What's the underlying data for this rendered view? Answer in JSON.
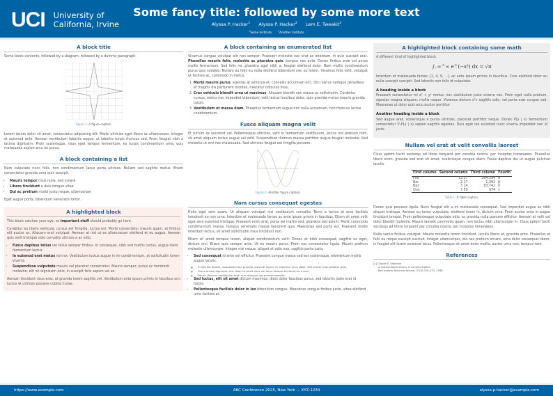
{
  "header": {
    "logo_mark": "UCI",
    "logo_line1": "University of",
    "logo_line2": "California, Irvine",
    "title": "Some fancy title: followed by some more text",
    "authors": [
      {
        "name": "Alyssa P. Hacker",
        "sup": "1"
      },
      {
        "name": "Alyssa P. Hacker",
        "sup": "2"
      },
      {
        "name": "Lem E. Tweakit",
        "sup": "2"
      }
    ],
    "institutes": [
      {
        "sup": "1",
        "name": "Some Institute"
      },
      {
        "sup": "2",
        "name": "Another Institute"
      }
    ]
  },
  "col1": {
    "block1": {
      "title": "A block title",
      "intro": "Some block contents, followed by a diagram, followed by a dummy paragraph.",
      "figure_label": "Figure 1:",
      "figure_caption": "A figure caption.",
      "para": "Lorem ipsum dolor sit amet, consectetur adipiscing elit. Morbi ultricies eget libero ac ullamcorper. Integer et euismod ante. Aenean vestibulum lobortis augue, ut lobortis turpis rhoncus sed. Proin feugiat nibh a lacinia dignissim. Proin scelerisque, risus eget tempor fermentum, ex turpis condimentum urna, quis malesuada sapien arcu eu purus."
    },
    "block2": {
      "title": "A block containing a list",
      "intro": "Nam vulputate nunc felis, non condimentum lacus porta ultrices. Nullam sed sagittis metus. Etiam consectetur gravida urna quis suscipit.",
      "items": [
        {
          "bold": "Mauris tempor",
          "text": " risus nulla, sed ornare"
        },
        {
          "bold": "Libero tincidunt",
          "text": " a duis congue vitae"
        },
        {
          "bold": "Dui ac pretium",
          "text": " morbi justo neque, ullamcorper"
        }
      ],
      "outro": "Eget augue porta, bibendum venenatis tortor."
    },
    "block3": {
      "title": "A highlighted block",
      "intro_pre": "This block catches your eye, so ",
      "intro_bold": "important stuff",
      "intro_post": " should probably go here.",
      "para": "Curabitur eu libero vehicula, cursus est fringilla, luctus est. Morbi consectetur mauris quam, at finibus elit auctor ac. Aliquam erat volutpat. Aenean at nisl ut ex ullamcorper eleifend et eu augue. Aenean quis velit tristique odio convallis ultrices a ac odio.",
      "items": [
        {
          "bold": "Fusce dapibus tellus",
          "text": " vel tellus semper finibus. In consequat, nibh sed mattis luctus, augue diam fermentum lectus."
        },
        {
          "bold": "In euismod erat metus",
          "text": " non ex. Vestibulum luctus augue in mi condimentum, at sollicitudin lorem viverra."
        },
        {
          "bold": "Suspendisse vulputate",
          "text": " mauris vel placerat consectetur. Mauris semper, purus ac hendrerit molestie, elit mi dignissim odio, in suscipit felis sapien vel ex."
        }
      ],
      "outro": "Aenean tincidunt risus eros, at gravida lorem sagittis vel. Vestibulum ante ipsum primis in faucibus orci luctus et ultrices posuere cubilia Curae."
    }
  },
  "col2": {
    "block1": {
      "title": "A block containing an enumerated list",
      "para_pre": "Vivamus congue volutpat elit non semper. Praesent molestie nec erat ac interdum. In quis suscipit erat. ",
      "para_bold": "Phasellus mauris felis, molestie ac pharetra quis",
      "para_post": ", tempus nec ante. Donec finibus ante vel purus mollis fermentum. Sed felis mi, pharetra eget nibh a, feugiat eleifend dolor. Nam mollis condimentum purus quis sodales. Nullam eu felis eu nulla eleifend bibendum nec eu lorem. Vivamus felis velit, volutpat ut facilisis ac, commodo in metus.",
      "items": [
        {
          "bold": "Morbi mauris purus",
          "text": ", egestas at vehicula et, convallis accumsan orci. Orci varius natoque penatibus et magnis dis parturient montes, nascetur ridiculus mus."
        },
        {
          "bold": "Cras vehicula blandit urna ut maximus",
          "text": ". Aliquam blandit nec massa ac sollicitudin. Curabitur cursus, metus nec imperdiet bibendum, velit lectus faucibus dolor, quis gravida metus mauris gravida turpis."
        },
        {
          "bold": "Vestibulum et massa diam",
          "text": ". Phasellus fermentum augue non nulla accumsan, non rhoncus lectus condimentum."
        }
      ]
    },
    "block2": {
      "title": "Fusce aliquam magna velit",
      "para": "Et rutrum ex euismod vel. Pellentesque ultricies, velit in fermentum vestibulum, lectus nisi pretium nibh, sit amet aliquam lectus augue vel velit. Suspendisse rhoncus massa porttitor augue feugiat molestie. Sed molestie ut orci nec malesuada. Sed ultricies feugiat est fringilla posuere.",
      "figure_label": "Figure 2:",
      "figure_caption": "Another figure caption."
    },
    "block3": {
      "title": "Nam cursus consequat egestas",
      "para1": "Nulla eget sem quam. Ut aliquam volutpat nisi vestibulum convallis. Nunc a lectus et eros facilisis hendrerit eu non urna. Interdum et malesuada fames ac ante ipsum primis in faucibus. Etiam sit amet velit eget sem euismod tristique. Praesent enim erat, porta vel mattis sed, pharetra sed ipsum. Morbi commodo condimentum massa, tempus venenatis massa hendrerit quis. Maecenas sed porta est. Praesent mollis interdum lectus, sit amet sollicitudin risus tincidunt non.",
      "para2": "Etiam sit amet tempus lorem, aliquet condimentum velit. Donec et nibh consequat, sagittis ex eget, dictum orci. Etiam quis semper ante. Ut eu mauris purus. Proin nec consectetur ligula. Mauris pretium molestie ullamcorper. Integer nisi neque, aliquet et odio non, sagittis porta justo.",
      "items": [
        {
          "bold": "Sed consequat",
          "text": " id ante vel efficitur. Praesent congue massa sed est scelerisque, elementum mollis augue iaculis.",
          "sub": [
            "In sed est finibus, vulputate nunc gravida, pulvinar lorem. In maximus nunc dolor, sed auctor eros porttitor quis.",
            "Fusce ornare dignissim nisi. Nam sit amet risus vel lacus tempor tincidunt eu a arcu.",
            "Donec rhoncus vestibulum erat, quis aliquam leo gravida egestas."
          ]
        },
        {
          "bold": "Sed luctus, elit sit amet",
          "text": " dictum maximus, diam dolor faucibus purus, sed lobortis justo erat id turpis."
        },
        {
          "bold": "Pellentesque facilisis dolor in leo",
          "text": " bibendum congue. Maecenas congue finibus justo, vitae eleifend urna facilisis at."
        }
      ]
    }
  },
  "col3": {
    "block1": {
      "title": "A highlighted block containing some math",
      "intro": "A different kind of highlighted block.",
      "equation": "∫₋∞^∞ e^(−x²) dx = √π",
      "para": "Interdum et malesuada fames {1, 4, 9, …} ac ante ipsum primis in faucibus. Cras eleifend dolor eu nulla suscipit suscipit. Sed lobortis non felis id vulputate.",
      "heading1": "A heading inside a block",
      "para1": "Praesent consectetur mi x² + y² metus, nec vestibulum justo viverra nec. Proin eget nulla pretium, egestas magna aliquam, mollis neque. Vivamus dictum uᵀv sagittis odio, vel porta erat congue sed. Maecenas ut dolor quis arcu auctor porttitor.",
      "heading2": "Another heading inside a block",
      "para2": "Sed augue erat, scelerisque a purus ultricies, placerat porttitor neque. Donec P(y | x) fermentum consectetur ∇ₓP(y | x) sapien sagittis egestas. Duis eget leo euismod nunc viverra imperdiet nec id justo."
    },
    "block2": {
      "title": "Nullam vel erat at velit convallis laoreet",
      "para": "Class aptent taciti sociosqu ad litora torquent per conubia nostra, per inceptos himenaeos. Phasellus libero enim, gravida sed erat sit amet, scelerisque congue diam. Fusce dapibus dui ut augue pulvinar iaculis.",
      "table": {
        "headers": [
          "First column",
          "Second column",
          "Third column",
          "Fourth"
        ],
        "rows": [
          [
            "Foo",
            "13.37",
            "384,394",
            "α"
          ],
          [
            "Bar",
            "2.17",
            "1,392",
            "β"
          ],
          [
            "Baz",
            "3.14",
            "83,742",
            "δ"
          ],
          [
            "Qux",
            "7.59",
            "974",
            "γ"
          ]
        ]
      },
      "table_label": "Table 1:",
      "table_caption": "A table caption.",
      "para2": "Donec quis posuere ligula. Nunc feugiat elit a mi malesuada consequat. Sed imperdiet augue ac nibh aliquet tristique. Aenean eu tortor vulputate, eleifend lorem in, dictum urna. Proin auctor ante in augue tincidunt tempor. Proin pellentesque vulputate odio, ac gravida nulla posuere efficitur. Aenean at velit vel dolor blandit molestie. Mauris laoreet commodo quam, non luctus nibh ullamcorper in. Class aptent taciti sociosqu ad litora torquent per conubia nostra, per inceptos himenaeos.",
      "para3": "Nulla varius finibus volutpat. Mauris molestie lorem tincidunt, iaculis libero at, gravida ante. Phasellus at felis eu neque suscipit suscipit. Integer ullamcorper, dui nec pretium ornare, urna dolor consequat libero, in feugiat elit lorem euismod lacus. Pellentesque sit amet dolor mollis, auctor urna non, tempus sem."
    },
    "references": {
      "title": "References",
      "items": [
        {
          "num": "[1]",
          "author": "Claude E. Shannon.",
          "title": "A mathematical theory of communication.",
          "venue": "Bell System Technical Journal, 27(3):379–423, 1948."
        }
      ]
    }
  },
  "footer": {
    "left": "https://www.example.com",
    "center": "ABC Conference 2025, New York — XYZ-1234",
    "right": "alyssa.p.hacker@example.com"
  },
  "colors": {
    "brand": "#0064a4",
    "block_title": "#22649a",
    "highlight_bg": "#fdf0ec",
    "math_block_bg": "#eeeeee"
  }
}
